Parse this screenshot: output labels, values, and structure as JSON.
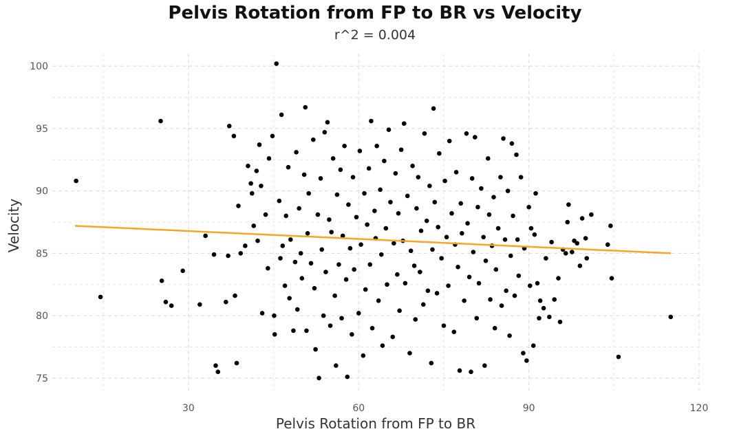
{
  "chart_data": {
    "type": "scatter",
    "title": "Pelvis Rotation from FP to BR vs Velocity",
    "subtitle": "r^2 = 0.004",
    "xlabel": "Pelvis Rotation from FP to BR",
    "ylabel": "Velocity",
    "xlim": [
      6,
      120
    ],
    "ylim": [
      74,
      101
    ],
    "xticks": [
      30,
      60,
      90,
      120
    ],
    "yticks": [
      75,
      80,
      85,
      90,
      95,
      100
    ],
    "grid": true,
    "trendline": {
      "x": [
        10,
        115
      ],
      "y": [
        87.2,
        85.0
      ],
      "color": "#F5A623"
    },
    "point_color": "#000000",
    "points": [
      [
        10.2,
        90.8
      ],
      [
        14.5,
        81.5
      ],
      [
        25.1,
        95.6
      ],
      [
        25.3,
        82.8
      ],
      [
        26.0,
        81.1
      ],
      [
        27.0,
        80.8
      ],
      [
        29.0,
        83.6
      ],
      [
        32.0,
        80.9
      ],
      [
        33.0,
        86.4
      ],
      [
        34.5,
        84.9
      ],
      [
        34.8,
        76.0
      ],
      [
        35.2,
        75.5
      ],
      [
        36.6,
        81.1
      ],
      [
        37.0,
        84.8
      ],
      [
        37.2,
        95.2
      ],
      [
        38.0,
        94.4
      ],
      [
        38.2,
        81.6
      ],
      [
        38.5,
        76.2
      ],
      [
        38.8,
        88.8
      ],
      [
        39.2,
        85.0
      ],
      [
        40.0,
        85.6
      ],
      [
        40.5,
        92.0
      ],
      [
        41.0,
        90.6
      ],
      [
        41.2,
        89.8
      ],
      [
        41.5,
        87.2
      ],
      [
        42.0,
        91.6
      ],
      [
        42.2,
        86.0
      ],
      [
        42.5,
        93.7
      ],
      [
        42.8,
        90.4
      ],
      [
        43.0,
        80.2
      ],
      [
        43.6,
        88.1
      ],
      [
        44.0,
        83.8
      ],
      [
        44.2,
        92.6
      ],
      [
        44.8,
        94.4
      ],
      [
        45.1,
        80.0
      ],
      [
        45.2,
        78.5
      ],
      [
        45.5,
        100.2
      ],
      [
        46.0,
        89.2
      ],
      [
        46.2,
        84.6
      ],
      [
        46.4,
        96.1
      ],
      [
        46.6,
        85.6
      ],
      [
        47.0,
        82.4
      ],
      [
        47.2,
        88.0
      ],
      [
        47.6,
        91.9
      ],
      [
        47.8,
        81.4
      ],
      [
        48.0,
        86.1
      ],
      [
        48.5,
        78.8
      ],
      [
        48.8,
        84.3
      ],
      [
        49.0,
        93.1
      ],
      [
        49.2,
        80.5
      ],
      [
        49.5,
        88.6
      ],
      [
        49.8,
        85.0
      ],
      [
        50.0,
        83.0
      ],
      [
        50.4,
        91.3
      ],
      [
        50.6,
        96.7
      ],
      [
        50.8,
        78.8
      ],
      [
        51.0,
        86.6
      ],
      [
        51.2,
        89.8
      ],
      [
        51.6,
        84.2
      ],
      [
        52.0,
        94.1
      ],
      [
        52.2,
        82.2
      ],
      [
        52.4,
        77.3
      ],
      [
        52.8,
        88.1
      ],
      [
        53.0,
        75.0
      ],
      [
        53.3,
        91.0
      ],
      [
        53.5,
        85.3
      ],
      [
        53.8,
        80.0
      ],
      [
        54.0,
        94.7
      ],
      [
        54.2,
        83.5
      ],
      [
        54.5,
        95.5
      ],
      [
        54.8,
        87.7
      ],
      [
        55.0,
        79.2
      ],
      [
        55.2,
        86.7
      ],
      [
        55.5,
        92.6
      ],
      [
        55.8,
        81.6
      ],
      [
        56.0,
        76.0
      ],
      [
        56.2,
        89.7
      ],
      [
        56.5,
        84.1
      ],
      [
        56.8,
        91.7
      ],
      [
        57.0,
        79.8
      ],
      [
        57.2,
        86.4
      ],
      [
        57.5,
        93.6
      ],
      [
        57.8,
        82.9
      ],
      [
        58.0,
        75.1
      ],
      [
        58.2,
        88.9
      ],
      [
        58.5,
        85.4
      ],
      [
        58.8,
        78.5
      ],
      [
        59.0,
        91.1
      ],
      [
        59.2,
        83.7
      ],
      [
        59.6,
        87.9
      ],
      [
        60.0,
        80.2
      ],
      [
        60.2,
        93.2
      ],
      [
        60.4,
        85.7
      ],
      [
        60.8,
        76.8
      ],
      [
        61.0,
        89.8
      ],
      [
        61.2,
        82.1
      ],
      [
        61.5,
        87.3
      ],
      [
        61.8,
        91.8
      ],
      [
        62.0,
        84.1
      ],
      [
        62.2,
        95.6
      ],
      [
        62.4,
        79.0
      ],
      [
        62.8,
        88.4
      ],
      [
        63.0,
        86.2
      ],
      [
        63.2,
        93.6
      ],
      [
        63.5,
        81.2
      ],
      [
        63.8,
        90.1
      ],
      [
        64.0,
        84.9
      ],
      [
        64.2,
        77.6
      ],
      [
        64.5,
        92.4
      ],
      [
        64.8,
        87.0
      ],
      [
        65.0,
        82.5
      ],
      [
        65.3,
        94.9
      ],
      [
        65.6,
        89.1
      ],
      [
        66.0,
        78.3
      ],
      [
        66.2,
        85.8
      ],
      [
        66.5,
        91.4
      ],
      [
        66.8,
        83.3
      ],
      [
        67.0,
        88.2
      ],
      [
        67.2,
        80.4
      ],
      [
        67.5,
        93.3
      ],
      [
        67.8,
        86.0
      ],
      [
        68.0,
        95.4
      ],
      [
        68.2,
        82.6
      ],
      [
        68.6,
        89.6
      ],
      [
        69.0,
        77.0
      ],
      [
        69.2,
        85.2
      ],
      [
        69.5,
        92.0
      ],
      [
        69.8,
        84.0
      ],
      [
        70.0,
        79.7
      ],
      [
        70.2,
        88.6
      ],
      [
        70.5,
        91.1
      ],
      [
        70.8,
        83.5
      ],
      [
        71.0,
        86.8
      ],
      [
        71.4,
        80.9
      ],
      [
        71.6,
        94.6
      ],
      [
        72.0,
        87.6
      ],
      [
        72.2,
        82.0
      ],
      [
        72.5,
        90.4
      ],
      [
        72.8,
        76.2
      ],
      [
        73.0,
        85.3
      ],
      [
        73.2,
        96.6
      ],
      [
        73.4,
        89.1
      ],
      [
        73.8,
        81.8
      ],
      [
        74.0,
        87.1
      ],
      [
        74.2,
        93.0
      ],
      [
        74.6,
        84.6
      ],
      [
        75.0,
        79.2
      ],
      [
        75.2,
        90.8
      ],
      [
        75.5,
        86.3
      ],
      [
        75.8,
        82.4
      ],
      [
        76.0,
        94.0
      ],
      [
        76.4,
        88.2
      ],
      [
        76.8,
        78.7
      ],
      [
        77.0,
        85.7
      ],
      [
        77.2,
        91.5
      ],
      [
        77.5,
        83.9
      ],
      [
        77.8,
        75.6
      ],
      [
        78.0,
        89.0
      ],
      [
        78.2,
        86.6
      ],
      [
        78.6,
        81.2
      ],
      [
        79.0,
        94.6
      ],
      [
        79.2,
        87.4
      ],
      [
        79.5,
        83.1
      ],
      [
        79.8,
        75.5
      ],
      [
        80.0,
        91.0
      ],
      [
        80.2,
        85.1
      ],
      [
        80.5,
        94.3
      ],
      [
        80.8,
        79.8
      ],
      [
        81.0,
        88.7
      ],
      [
        81.2,
        82.6
      ],
      [
        81.6,
        90.2
      ],
      [
        82.0,
        86.3
      ],
      [
        82.2,
        76.0
      ],
      [
        82.4,
        84.4
      ],
      [
        82.8,
        92.6
      ],
      [
        83.0,
        88.1
      ],
      [
        83.2,
        81.3
      ],
      [
        83.5,
        85.6
      ],
      [
        83.8,
        89.5
      ],
      [
        84.0,
        79.0
      ],
      [
        84.2,
        83.7
      ],
      [
        84.6,
        87.0
      ],
      [
        85.0,
        91.1
      ],
      [
        85.2,
        80.8
      ],
      [
        85.5,
        94.2
      ],
      [
        85.8,
        86.1
      ],
      [
        86.0,
        82.0
      ],
      [
        86.3,
        90.0
      ],
      [
        86.6,
        78.4
      ],
      [
        86.8,
        84.8
      ],
      [
        87.0,
        93.8
      ],
      [
        87.2,
        88.0
      ],
      [
        87.5,
        81.6
      ],
      [
        87.8,
        92.9
      ],
      [
        88.0,
        86.1
      ],
      [
        88.2,
        83.2
      ],
      [
        88.6,
        91.1
      ],
      [
        89.0,
        77.0
      ],
      [
        89.2,
        85.4
      ],
      [
        89.6,
        76.4
      ],
      [
        90.0,
        88.7
      ],
      [
        90.2,
        82.4
      ],
      [
        90.4,
        87.0
      ],
      [
        90.8,
        77.6
      ],
      [
        91.0,
        86.5
      ],
      [
        91.2,
        89.8
      ],
      [
        91.5,
        82.6
      ],
      [
        91.8,
        79.8
      ],
      [
        92.0,
        81.2
      ],
      [
        92.6,
        80.6
      ],
      [
        93.0,
        84.6
      ],
      [
        93.6,
        79.9
      ],
      [
        94.0,
        85.9
      ],
      [
        94.5,
        81.3
      ],
      [
        95.2,
        83.0
      ],
      [
        95.5,
        79.5
      ],
      [
        96.0,
        85.3
      ],
      [
        96.5,
        85.0
      ],
      [
        96.8,
        87.5
      ],
      [
        97.0,
        88.9
      ],
      [
        97.6,
        85.1
      ],
      [
        98.0,
        86.0
      ],
      [
        98.5,
        85.8
      ],
      [
        99.0,
        84.0
      ],
      [
        99.4,
        87.8
      ],
      [
        100.0,
        86.2
      ],
      [
        100.2,
        84.6
      ],
      [
        101.0,
        88.1
      ],
      [
        103.9,
        85.7
      ],
      [
        104.4,
        87.2
      ],
      [
        104.6,
        83.0
      ],
      [
        105.8,
        76.7
      ],
      [
        115.0,
        79.9
      ]
    ]
  }
}
